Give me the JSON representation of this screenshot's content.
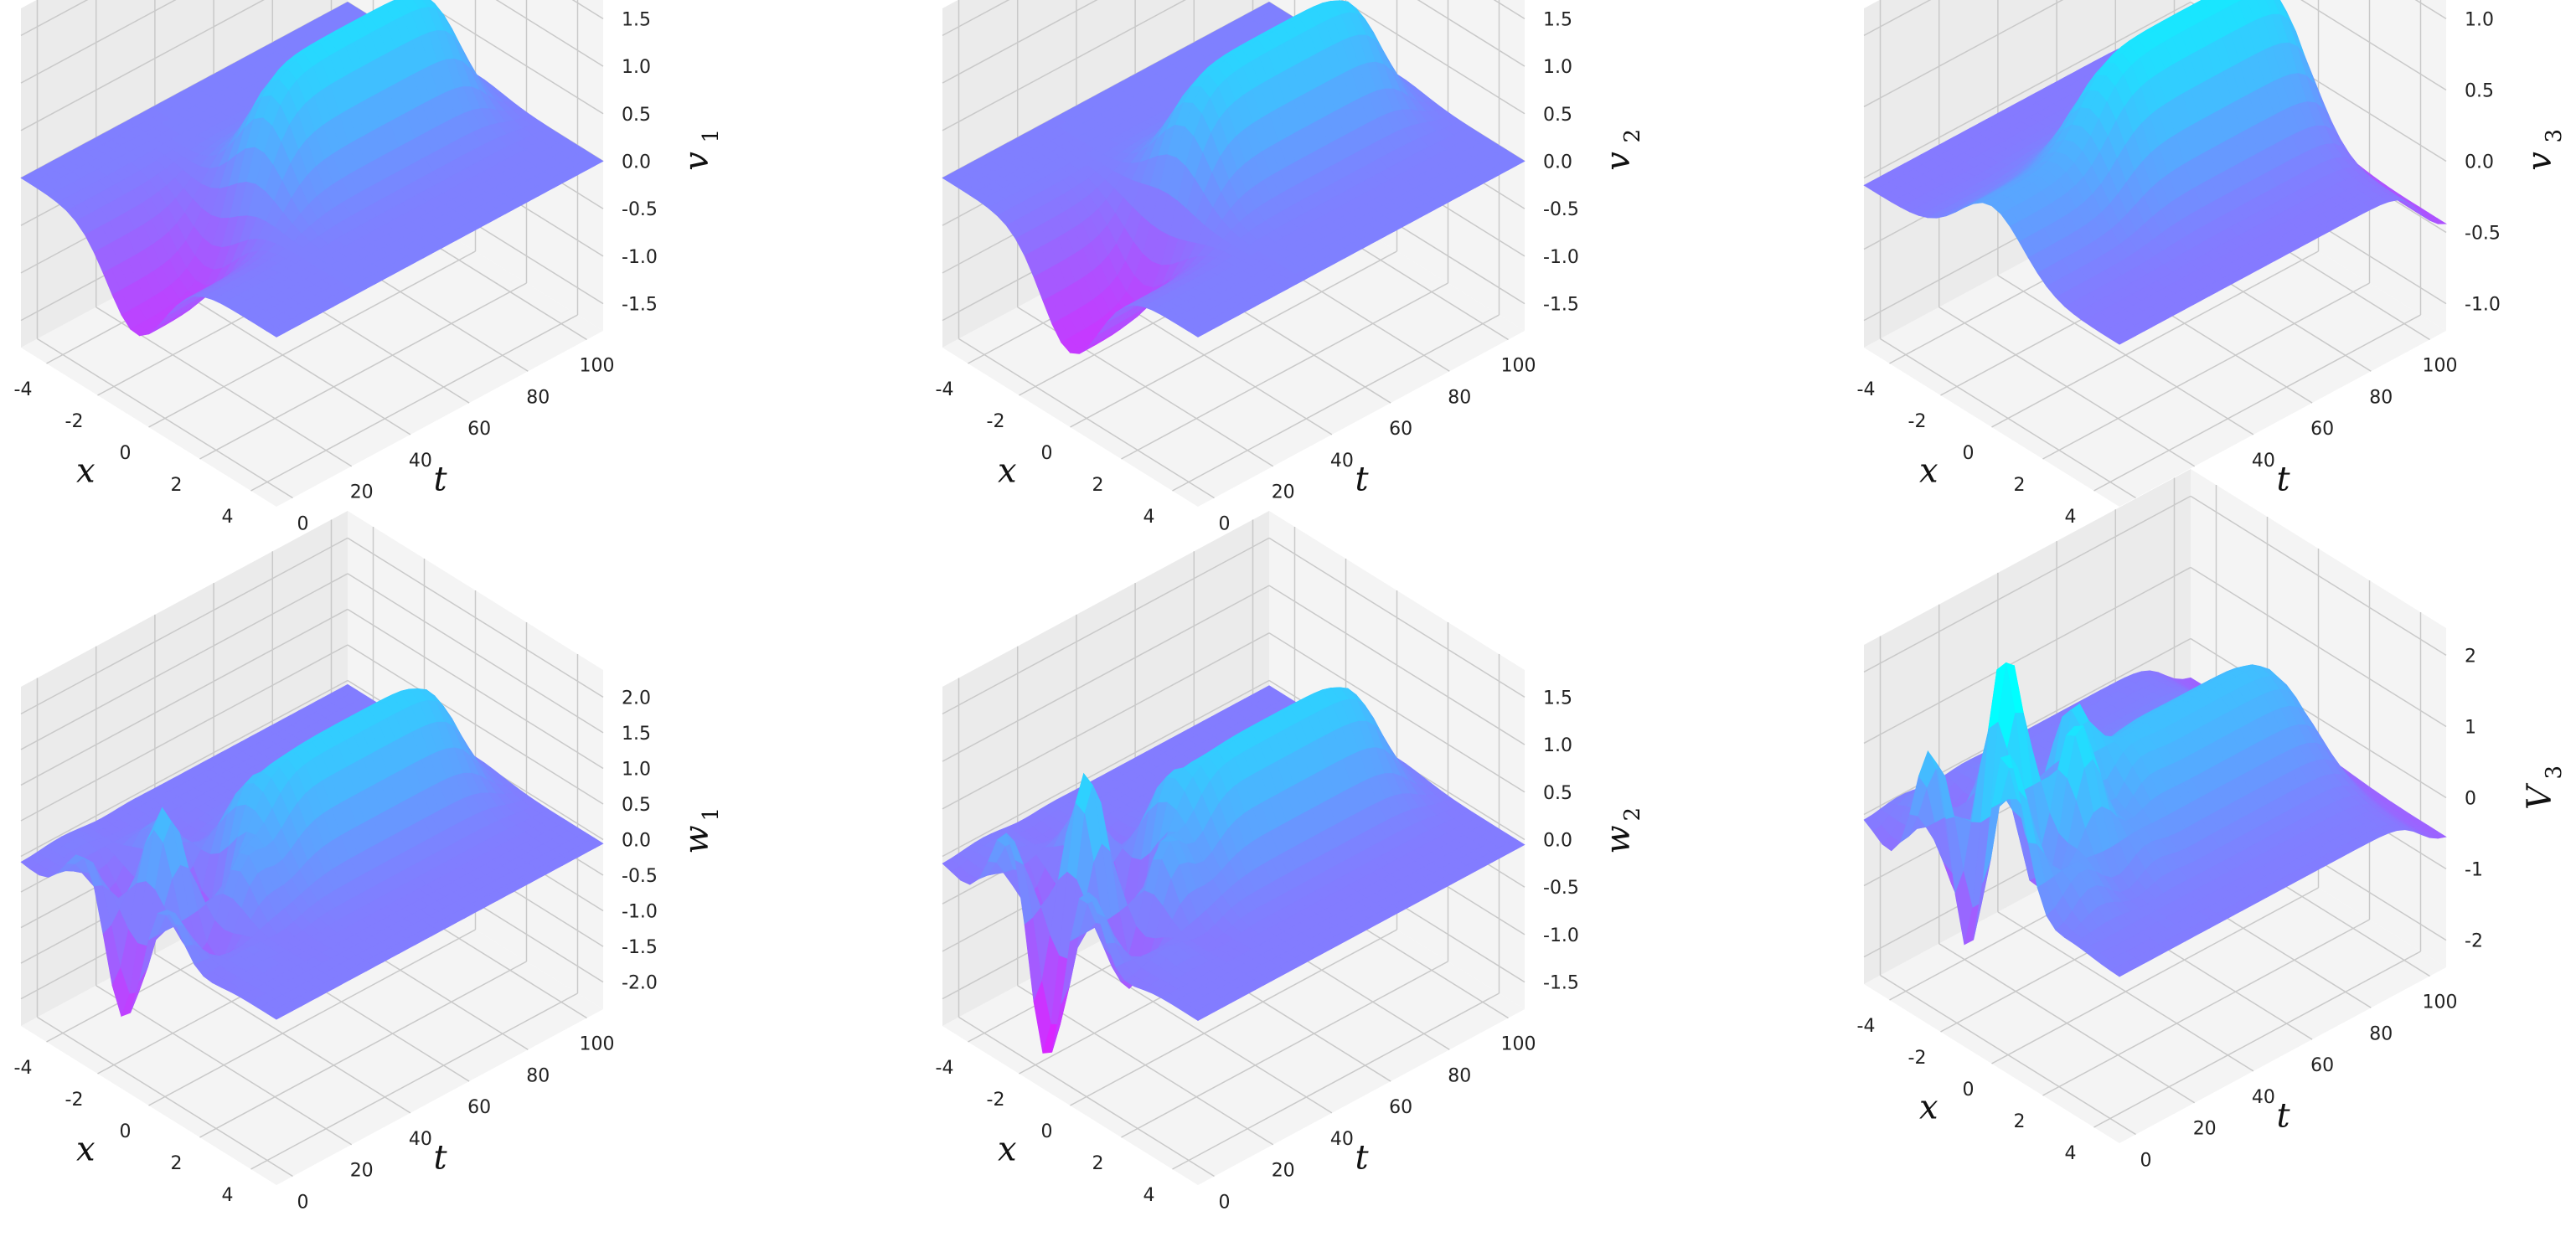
{
  "colors": {
    "low": "#ff00ff",
    "high": "#00ffff",
    "pane": "#f4f4f4",
    "pane_side": "#ebebeb",
    "grid": "#c9c9c9"
  },
  "chart_data": [
    {
      "type": "surface3d",
      "name_sym": "v",
      "name_sub": "1",
      "xlabel": "x",
      "ylabel": "t",
      "xticks": [
        "-4",
        "-2",
        "0",
        "2",
        "4"
      ],
      "yticks": [
        "0",
        "20",
        "40",
        "60",
        "80",
        "100"
      ],
      "zticks": [
        "1.5",
        "1.0",
        "0.5",
        "0.0",
        "-0.5",
        "-1.0",
        "-1.5"
      ],
      "zlim": [
        -1.8,
        1.8
      ],
      "xlim": [
        -5,
        5
      ],
      "tlim": [
        0,
        100
      ]
    },
    {
      "type": "surface3d",
      "name_sym": "v",
      "name_sub": "2",
      "xlabel": "x",
      "ylabel": "t",
      "xticks": [
        "-4",
        "-2",
        "0",
        "2",
        "4"
      ],
      "yticks": [
        "0",
        "20",
        "40",
        "60",
        "80",
        "100"
      ],
      "zticks": [
        "1.5",
        "1.0",
        "0.5",
        "0.0",
        "-0.5",
        "-1.0",
        "-1.5"
      ],
      "zlim": [
        -1.6,
        1.6
      ],
      "xlim": [
        -5,
        5
      ],
      "tlim": [
        0,
        100
      ]
    },
    {
      "type": "surface3d",
      "name_sym": "v",
      "name_sub": "3",
      "xlabel": "x",
      "ylabel": "t",
      "xticks": [
        "-4",
        "-2",
        "0",
        "2",
        "4"
      ],
      "yticks": [
        "0",
        "20",
        "40",
        "60",
        "80",
        "100"
      ],
      "zticks": [
        "1.0",
        "0.5",
        "0.0",
        "-0.5",
        "-1.0"
      ],
      "zlim": [
        -1.1,
        1.2
      ],
      "xlim": [
        -5,
        5
      ],
      "tlim": [
        0,
        100
      ]
    },
    {
      "type": "surface3d",
      "name_sym": "w",
      "name_sub": "1",
      "xlabel": "x",
      "ylabel": "t",
      "xticks": [
        "-4",
        "-2",
        "0",
        "2",
        "4"
      ],
      "yticks": [
        "0",
        "20",
        "40",
        "60",
        "80",
        "100"
      ],
      "zticks": [
        "2.0",
        "1.5",
        "1.0",
        "0.5",
        "0.0",
        "-0.5",
        "-1.0",
        "-1.5",
        "-2.0"
      ],
      "zlim": [
        -2.1,
        2.2
      ],
      "xlim": [
        -5,
        5
      ],
      "tlim": [
        0,
        100
      ]
    },
    {
      "type": "surface3d",
      "name_sym": "w",
      "name_sub": "2",
      "xlabel": "x",
      "ylabel": "t",
      "xticks": [
        "-4",
        "-2",
        "0",
        "2",
        "4"
      ],
      "yticks": [
        "0",
        "20",
        "40",
        "60",
        "80",
        "100"
      ],
      "zticks": [
        "1.5",
        "1.0",
        "0.5",
        "0.0",
        "-0.5",
        "-1.0",
        "-1.5"
      ],
      "zlim": [
        -1.6,
        1.7
      ],
      "xlim": [
        -5,
        5
      ],
      "tlim": [
        0,
        100
      ]
    },
    {
      "type": "surface3d",
      "name_sym": "V",
      "name_sub": "3",
      "xlabel": "x",
      "ylabel": "t",
      "xticks": [
        "-4",
        "-2",
        "0",
        "2",
        "4"
      ],
      "yticks": [
        "0",
        "20",
        "40",
        "60",
        "80",
        "100"
      ],
      "zticks": [
        "2",
        "1",
        "0",
        "-1",
        "-2"
      ],
      "zlim": [
        -2.6,
        2.7
      ],
      "xlim": [
        -5,
        5
      ],
      "tlim": [
        0,
        100
      ]
    }
  ]
}
